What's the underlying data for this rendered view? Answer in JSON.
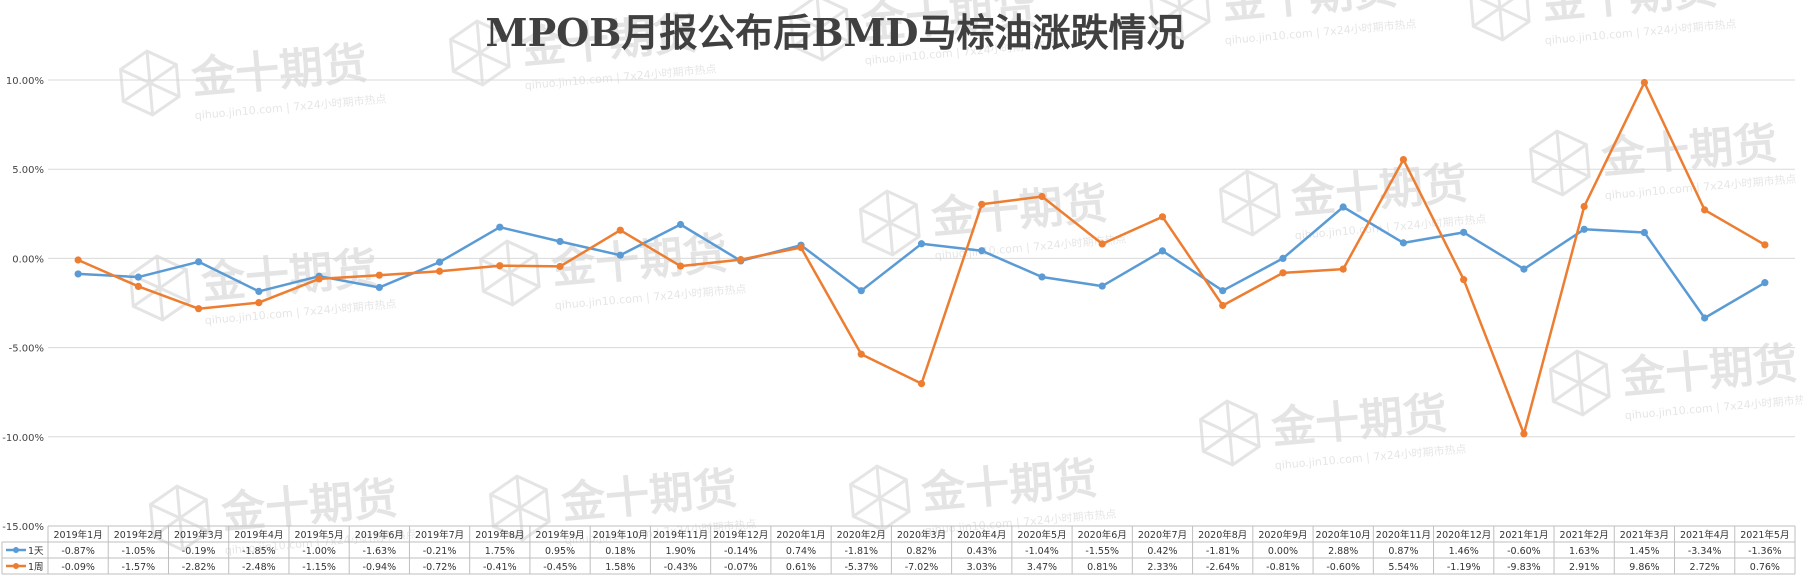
{
  "chart_data": {
    "type": "line",
    "title": "MPOB月报公布后BMD马棕油涨跌情况",
    "categories": [
      "2019年1月",
      "2019年2月",
      "2019年3月",
      "2019年4月",
      "2019年5月",
      "2019年6月",
      "2019年7月",
      "2019年8月",
      "2019年9月",
      "2019年10月",
      "2019年11月",
      "2019年12月",
      "2020年1月",
      "2020年2月",
      "2020年3月",
      "2020年4月",
      "2020年5月",
      "2020年6月",
      "2020年7月",
      "2020年8月",
      "2020年9月",
      "2020年10月",
      "2020年11月",
      "2020年12月",
      "2021年1月",
      "2021年2月",
      "2021年3月",
      "2021年4月",
      "2021年5月"
    ],
    "ylim": [
      -15,
      10
    ],
    "yticks": [
      10,
      5,
      0,
      -5,
      -10,
      -15
    ],
    "ytick_labels": [
      "10.00%",
      "5.00%",
      "0.00%",
      "-5.00%",
      "-10.00%",
      "-15.00%"
    ],
    "grid": true,
    "legend": "data-table",
    "series": [
      {
        "name": "1天",
        "color": "#5b9bd5",
        "values": [
          -0.87,
          -1.05,
          -0.19,
          -1.85,
          -1.0,
          -1.63,
          -0.21,
          1.75,
          0.95,
          0.18,
          1.9,
          -0.14,
          0.74,
          -1.81,
          0.82,
          0.43,
          -1.04,
          -1.55,
          0.42,
          -1.81,
          0.0,
          2.88,
          0.87,
          1.46,
          -0.6,
          1.63,
          1.45,
          -3.34,
          -1.36
        ],
        "labels": [
          "-0.87%",
          "-1.05%",
          "-0.19%",
          "-1.85%",
          "-1.00%",
          "-1.63%",
          "-0.21%",
          "1.75%",
          "0.95%",
          "0.18%",
          "1.90%",
          "-0.14%",
          "0.74%",
          "-1.81%",
          "0.82%",
          "0.43%",
          "-1.04%",
          "-1.55%",
          "0.42%",
          "-1.81%",
          "0.00%",
          "2.88%",
          "0.87%",
          "1.46%",
          "-0.60%",
          "1.63%",
          "1.45%",
          "-3.34%",
          "-1.36%"
        ]
      },
      {
        "name": "1周",
        "color": "#ed7d31",
        "values": [
          -0.09,
          -1.57,
          -2.82,
          -2.48,
          -1.15,
          -0.94,
          -0.72,
          -0.41,
          -0.45,
          1.58,
          -0.43,
          -0.07,
          0.61,
          -5.37,
          -7.02,
          3.03,
          3.47,
          0.81,
          2.33,
          -2.64,
          -0.81,
          -0.6,
          5.54,
          -1.19,
          -9.83,
          2.91,
          9.86,
          2.72,
          0.76
        ],
        "labels": [
          "-0.09%",
          "-1.57%",
          "-2.82%",
          "-2.48%",
          "-1.15%",
          "-0.94%",
          "-0.72%",
          "-0.41%",
          "-0.45%",
          "1.58%",
          "-0.43%",
          "-0.07%",
          "0.61%",
          "-5.37%",
          "-7.02%",
          "3.03%",
          "3.47%",
          "0.81%",
          "2.33%",
          "-2.64%",
          "-0.81%",
          "-0.60%",
          "5.54%",
          "-1.19%",
          "-9.83%",
          "2.91%",
          "9.86%",
          "2.72%",
          "0.76%"
        ]
      }
    ]
  },
  "watermark": {
    "logo_text": "金十期货",
    "sub_text": "qihuo.jin10.com | 7x24小时期市热点"
  }
}
